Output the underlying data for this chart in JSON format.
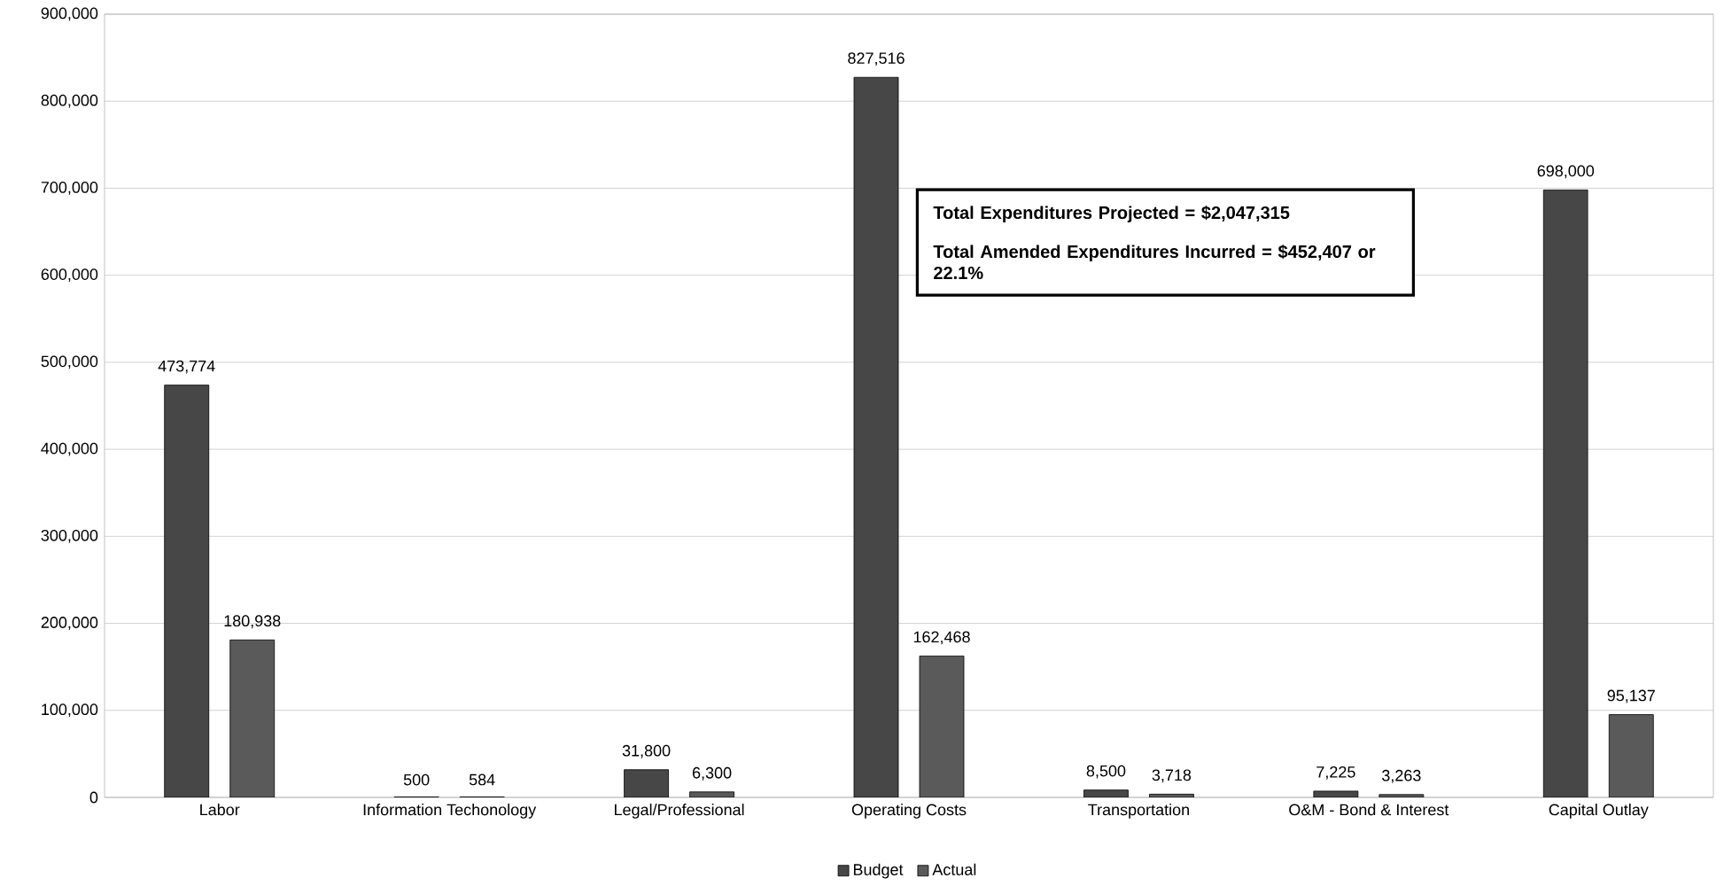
{
  "chart_data": {
    "type": "bar",
    "categories": [
      "Labor",
      "Information Techonology",
      "Legal/Professional",
      "Operating Costs",
      "Transportation",
      "O&M - Bond & Interest",
      "Capital Outlay"
    ],
    "series": [
      {
        "name": "Budget",
        "color": "#474747",
        "values": [
          473774,
          500,
          31800,
          827516,
          8500,
          7225,
          698000
        ],
        "value_labels": [
          "473,774",
          "500",
          "31,800",
          "827,516",
          "8,500",
          "7,225",
          "698,000"
        ]
      },
      {
        "name": "Actual",
        "color": "#5a5a5a",
        "values": [
          180938,
          584,
          6300,
          162468,
          3718,
          3263,
          95137
        ],
        "value_labels": [
          "180,938",
          "584",
          "6,300",
          "162,468",
          "3,718",
          "3,263",
          "95,137"
        ]
      }
    ],
    "ylim": [
      0,
      900000
    ],
    "yticks": [
      0,
      {
        "value": 100000,
        "label": "100,000"
      },
      {
        "value": 200000,
        "label": "200,000"
      },
      {
        "value": 300000,
        "label": "300,000"
      },
      {
        "value": 400000,
        "label": "400,000"
      },
      {
        "value": 500000,
        "label": "500,000"
      },
      {
        "value": 600000,
        "label": "600,000"
      },
      {
        "value": 700000,
        "label": "700,000"
      },
      {
        "value": 800000,
        "label": "800,000"
      },
      {
        "value": 900000,
        "label": "900,000"
      }
    ],
    "grid": "y",
    "legend": "bottom",
    "annotations": [
      "Total Expenditures Projected = $2,047,315",
      "Total Amended Expenditures Incurred = $452,407 or 22.1%"
    ]
  }
}
